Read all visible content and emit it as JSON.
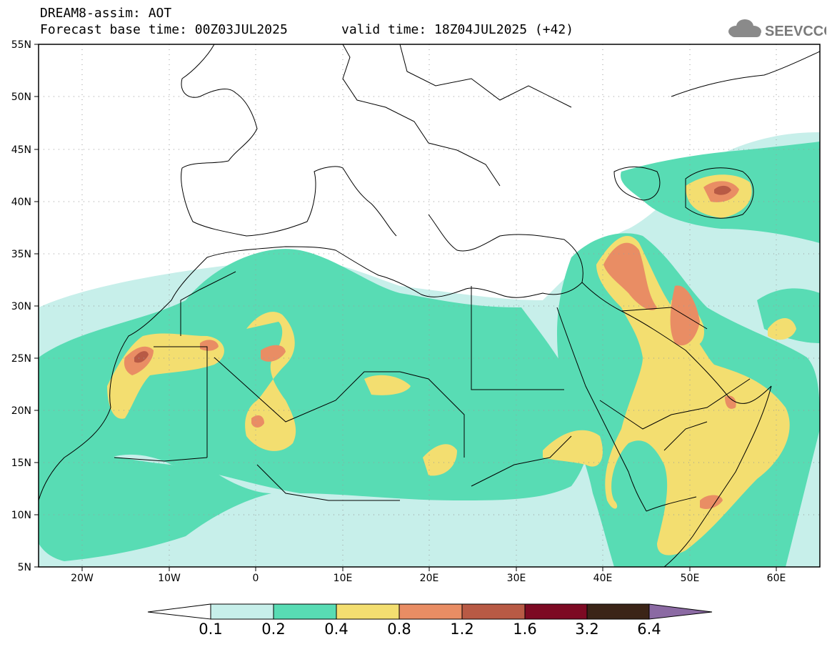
{
  "header": {
    "title": "DREAM8-assim: AOT",
    "forecast_base": "Forecast base time: 00Z03JUL2025",
    "valid_time": "valid time: 18Z04JUL2025 (+42)"
  },
  "logo": {
    "text": "SEEVCCC",
    "icon": "cloud-icon"
  },
  "map": {
    "lat_ticks": [
      "55N",
      "50N",
      "45N",
      "40N",
      "35N",
      "30N",
      "25N",
      "20N",
      "15N",
      "10N",
      "5N"
    ],
    "lon_ticks": [
      "20W",
      "10W",
      "0",
      "10E",
      "20E",
      "30E",
      "40E",
      "50E",
      "60E"
    ]
  },
  "colorbar": {
    "levels": [
      "0.1",
      "0.2",
      "0.4",
      "0.8",
      "1.2",
      "1.6",
      "3.2",
      "6.4"
    ],
    "colors": [
      "#c7efea",
      "#58dcb4",
      "#f3de70",
      "#e98d64",
      "#b85a45",
      "#7d0a23",
      "#3b2417",
      "#8b6aa3"
    ]
  },
  "palette": {
    "frame": "#000000",
    "grid": "#9a9a9a",
    "coast": "#000000"
  }
}
